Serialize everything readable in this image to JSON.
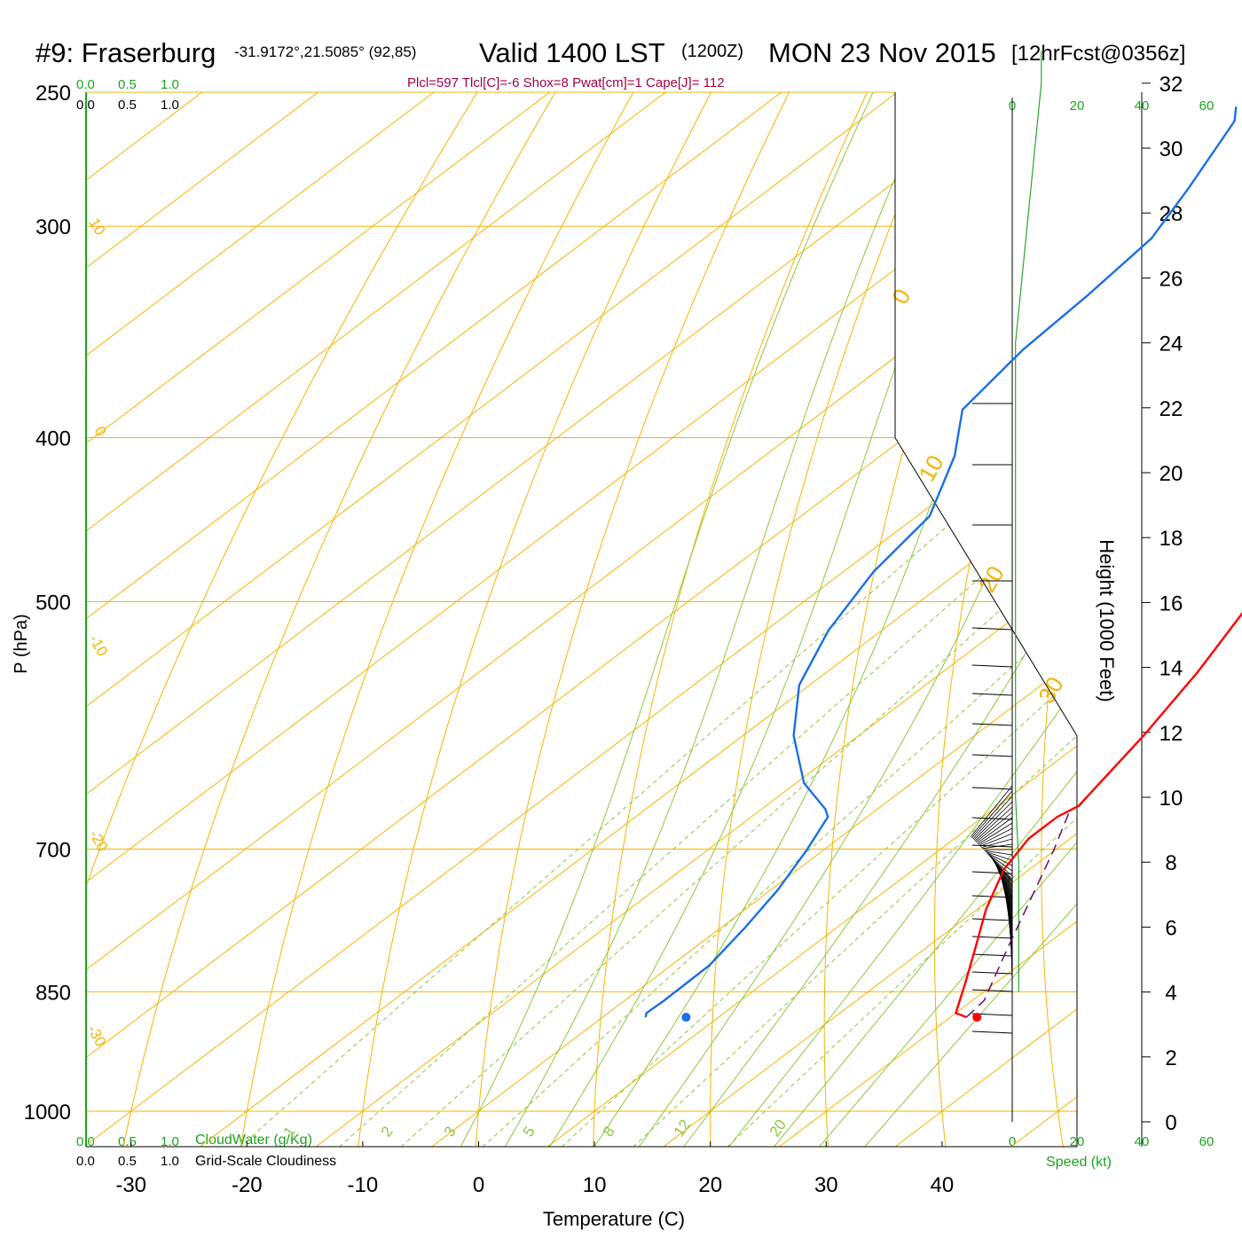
{
  "header": {
    "station": "#9: Fraserburg",
    "coords": "-31.9172°,21.5085° (92,85)",
    "valid_main": "Valid 1400 LST",
    "valid_utc": "(1200Z)",
    "date": "MON 23 Nov 2015",
    "forecast": "[12hrFcst@0356z]",
    "indices": "Plcl=597 Tlcl[C]=-6 Shox=8 Pwat[cm]=1 Cape[J]= 112"
  },
  "colors": {
    "temperature": "#ff0000",
    "dewpoint": "#1a6fe6",
    "isobar_isotherm": "#f5b400",
    "dry_adiabat": "#f5b400",
    "moist_adiabat": "#8cc83c",
    "mixing_ratio": "#8cc83c",
    "parcel": "#6a0a6a",
    "wind_speed": "#2aa52a",
    "cloud_scale": "#1aa51a",
    "indices_text": "#a0004a"
  },
  "scales": {
    "cloud_top_green": [
      "0.0",
      "0.5",
      "1.0"
    ],
    "cloud_top_black": [
      "0.0",
      "0.5",
      "1.0"
    ],
    "cloud_bottom_green": [
      "0.0",
      "0.5",
      "1.0"
    ],
    "cloud_bottom_green_label": "CloudWater (g/Kg)",
    "cloud_bottom_black": [
      "0.0",
      "0.5",
      "1.0"
    ],
    "cloud_bottom_black_label": "Grid-Scale Cloudiness",
    "speed_ticks": [
      "0",
      "20",
      "40",
      "60"
    ],
    "speed_label": "Speed (kt)"
  },
  "chart_data": {
    "type": "line",
    "subtype": "skew-t log-p sounding",
    "xlabel": "Temperature (C)",
    "ylabel": "P (hPa)",
    "ylabel_right": "Height (1000 Feet)",
    "x_ticks": [
      -30,
      -20,
      -10,
      0,
      10,
      20,
      30,
      40
    ],
    "y_ticks": [
      250,
      300,
      400,
      500,
      700,
      850,
      1000
    ],
    "y_scale": "log",
    "height_ticks": [
      0,
      2,
      4,
      6,
      8,
      10,
      12,
      14,
      16,
      18,
      20,
      22,
      24,
      26,
      28,
      30,
      32
    ],
    "dry_adiabat_labels": [
      "10",
      "0",
      "-10",
      "-20",
      "-30",
      "0",
      "10",
      "20",
      "30"
    ],
    "mixing_ratio_labels": [
      "1",
      "2",
      "3",
      "5",
      "8",
      "12",
      "20"
    ],
    "series": [
      {
        "name": "Temperature",
        "points": [
          [
            880,
            31.4
          ],
          [
            875,
            30.0
          ],
          [
            860,
            28.9
          ],
          [
            840,
            27.4
          ],
          [
            800,
            24.2
          ],
          [
            760,
            20.8
          ],
          [
            720,
            17.8
          ],
          [
            690,
            16.4
          ],
          [
            670,
            16.4
          ],
          [
            660,
            17.0
          ],
          [
            650,
            16.6
          ],
          [
            600,
            14.6
          ],
          [
            550,
            12.0
          ],
          [
            500,
            8.6
          ],
          [
            450,
            4.1
          ],
          [
            400,
            -1.3
          ],
          [
            350,
            -7.7
          ],
          [
            320,
            -12.8
          ],
          [
            300,
            -16.5
          ],
          [
            270,
            -23.0
          ],
          [
            255,
            -27.0
          ]
        ]
      },
      {
        "name": "Dewpoint",
        "points": [
          [
            880,
            3.7
          ],
          [
            875,
            3.3
          ],
          [
            860,
            3.4
          ],
          [
            820,
            3.3
          ],
          [
            780,
            2.1
          ],
          [
            740,
            0.6
          ],
          [
            700,
            -1.5
          ],
          [
            670,
            -3.4
          ],
          [
            663,
            -4.5
          ],
          [
            640,
            -9.3
          ],
          [
            600,
            -15.6
          ],
          [
            560,
            -20.9
          ],
          [
            520,
            -24.6
          ],
          [
            480,
            -27.4
          ],
          [
            445,
            -28.9
          ],
          [
            410,
            -33.6
          ],
          [
            385,
            -38.2
          ],
          [
            355,
            -39.8
          ],
          [
            330,
            -40.4
          ],
          [
            305,
            -41.4
          ],
          [
            285,
            -43.9
          ],
          [
            260,
            -47.6
          ],
          [
            255,
            -49.1
          ]
        ]
      },
      {
        "name": "Parcel",
        "points": [
          [
            880,
            31.4
          ],
          [
            860,
            31.0
          ],
          [
            800,
            27.0
          ],
          [
            740,
            22.8
          ],
          [
            700,
            19.8
          ],
          [
            667,
            17.0
          ]
        ]
      }
    ],
    "surface_markers": {
      "temperature": [
        880,
        32.3
      ],
      "dewpoint": [
        880,
        7.2
      ]
    },
    "wind_profile": {
      "ticks": [
        0,
        20,
        40,
        60
      ],
      "speed_kt_by_height_kft": [
        [
          4,
          2
        ],
        [
          6,
          2
        ],
        [
          8,
          2
        ],
        [
          10,
          1
        ],
        [
          12,
          1
        ],
        [
          14,
          1
        ],
        [
          16,
          1
        ],
        [
          18,
          1
        ],
        [
          20,
          1
        ],
        [
          22,
          1
        ],
        [
          24,
          1
        ],
        [
          26,
          3
        ],
        [
          28,
          5
        ],
        [
          30,
          7
        ],
        [
          32,
          9
        ],
        [
          33,
          9
        ]
      ]
    },
    "grid": true
  }
}
